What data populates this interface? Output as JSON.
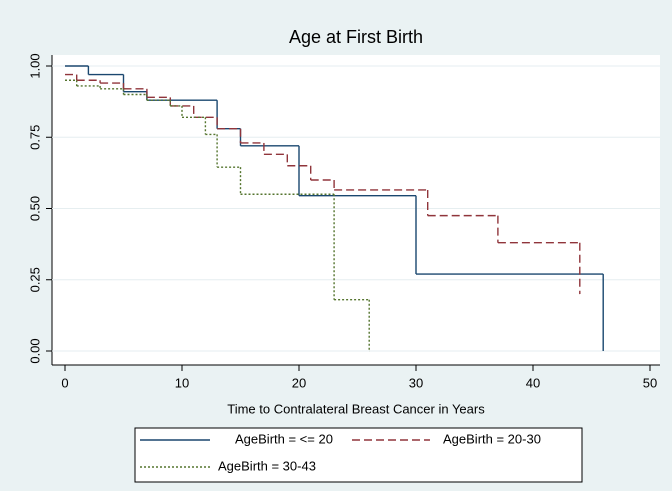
{
  "chart_data": {
    "type": "step",
    "title": "Age at First Birth",
    "x_label": "Time to Contralateral Breast Cancer in Years",
    "xlim": [
      0,
      50
    ],
    "xticks": [
      0,
      10,
      20,
      30,
      40,
      50
    ],
    "ylim": [
      0,
      1
    ],
    "yticks": [
      {
        "value": 0,
        "label": "0.00"
      },
      {
        "value": 0.25,
        "label": "0.25"
      },
      {
        "value": 0.5,
        "label": "0.50"
      },
      {
        "value": 0.75,
        "label": "0.75"
      },
      {
        "value": 1,
        "label": "1.00"
      }
    ],
    "grid": true,
    "legend": "bottom",
    "series": [
      {
        "name": "AgeBirth = <= 20",
        "color": "#1a476f",
        "line_style": "solid",
        "x": [
          0,
          2,
          5,
          7,
          13,
          15,
          20,
          30,
          46
        ],
        "values": [
          1.0,
          0.97,
          0.91,
          0.88,
          0.78,
          0.72,
          0.545,
          0.27,
          0.0
        ]
      },
      {
        "name": "AgeBirth = 20-30",
        "color": "#90353b",
        "line_style": "dashed",
        "x": [
          0,
          1,
          3,
          5,
          7,
          9,
          11,
          13,
          15,
          17,
          19,
          21,
          23,
          31,
          37,
          44
        ],
        "values": [
          0.97,
          0.95,
          0.94,
          0.92,
          0.89,
          0.86,
          0.82,
          0.78,
          0.73,
          0.69,
          0.65,
          0.6,
          0.565,
          0.475,
          0.38,
          0.2
        ]
      },
      {
        "name": "AgeBirth = 30-43",
        "color": "#55752f",
        "line_style": "dotted",
        "x": [
          0,
          1,
          3,
          5,
          7,
          9,
          10,
          12,
          13,
          15,
          23,
          26
        ],
        "values": [
          0.95,
          0.93,
          0.92,
          0.9,
          0.88,
          0.86,
          0.82,
          0.76,
          0.645,
          0.55,
          0.18,
          0.0
        ]
      }
    ]
  }
}
